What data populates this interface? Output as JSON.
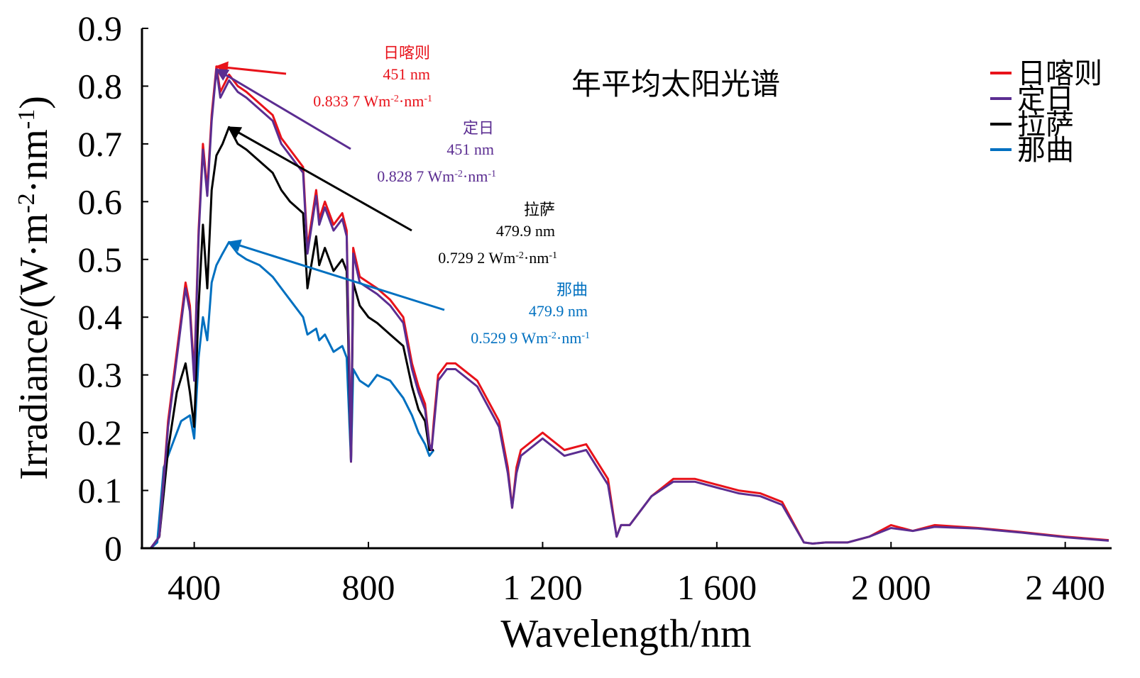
{
  "chart_data": {
    "type": "line",
    "title": "年平均太阳光谱",
    "xlabel": "Wavelength/nm",
    "ylabel_main": "Irradiance/(W·m",
    "ylabel_sup1": "-2",
    "ylabel_mid": "·nm",
    "ylabel_sup2": "-1",
    "ylabel_end": ")",
    "xlim": [
      280,
      2500
    ],
    "ylim": [
      0,
      0.9
    ],
    "xticks": [
      400,
      800,
      1200,
      1600,
      2000,
      2400
    ],
    "xtick_labels": [
      "400",
      "800",
      "1 200",
      "1 600",
      "2 000",
      "2 400"
    ],
    "yticks": [
      0,
      0.1,
      0.2,
      0.3,
      0.4,
      0.5,
      0.6,
      0.7,
      0.8,
      0.9
    ],
    "ytick_labels": [
      "0",
      "0.1",
      "0.2",
      "0.3",
      "0.4",
      "0.5",
      "0.6",
      "0.7",
      "0.8",
      "0.9"
    ],
    "legend_position": "top-right",
    "series": [
      {
        "name": "日喀则",
        "color": "#e8121a",
        "peak": {
          "wavelength": "451 nm",
          "value": "0.833 7",
          "unit_base": "Wm",
          "unit_sup1": "-2",
          "unit_mid": "·nm",
          "unit_sup2": "-1"
        },
        "x": [
          290,
          300,
          320,
          340,
          360,
          380,
          390,
          400,
          410,
          420,
          430,
          440,
          451,
          460,
          480,
          500,
          520,
          550,
          580,
          600,
          620,
          650,
          660,
          680,
          687,
          700,
          720,
          740,
          750,
          760,
          765,
          780,
          800,
          820,
          850,
          880,
          900,
          915,
          930,
          940,
          945,
          950,
          960,
          980,
          1000,
          1050,
          1100,
          1120,
          1130,
          1140,
          1150,
          1200,
          1250,
          1300,
          1350,
          1370,
          1380,
          1400,
          1450,
          1500,
          1550,
          1600,
          1650,
          1700,
          1750,
          1800,
          1820,
          1850,
          1900,
          1950,
          2000,
          2050,
          2100,
          2200,
          2300,
          2400,
          2500
        ],
        "y": [
          0,
          0,
          0.02,
          0.22,
          0.34,
          0.46,
          0.42,
          0.3,
          0.55,
          0.7,
          0.62,
          0.75,
          0.834,
          0.79,
          0.82,
          0.8,
          0.79,
          0.77,
          0.75,
          0.71,
          0.69,
          0.66,
          0.52,
          0.62,
          0.57,
          0.6,
          0.56,
          0.58,
          0.55,
          0.15,
          0.52,
          0.47,
          0.46,
          0.45,
          0.43,
          0.4,
          0.32,
          0.28,
          0.25,
          0.18,
          0.17,
          0.22,
          0.3,
          0.32,
          0.32,
          0.29,
          0.22,
          0.14,
          0.07,
          0.14,
          0.17,
          0.2,
          0.17,
          0.18,
          0.12,
          0.02,
          0.04,
          0.04,
          0.09,
          0.12,
          0.12,
          0.11,
          0.1,
          0.095,
          0.08,
          0.01,
          0.008,
          0.01,
          0.01,
          0.02,
          0.04,
          0.03,
          0.04,
          0.035,
          0.028,
          0.02,
          0.014
        ]
      },
      {
        "name": "定日",
        "color": "#5b2d91",
        "peak": {
          "wavelength": "451 nm",
          "value": "0.828 7",
          "unit_base": "Wm",
          "unit_sup1": "-2",
          "unit_mid": "·nm",
          "unit_sup2": "-1"
        },
        "x": [
          290,
          300,
          320,
          340,
          360,
          380,
          390,
          400,
          410,
          420,
          430,
          440,
          451,
          460,
          480,
          500,
          520,
          550,
          580,
          600,
          620,
          650,
          660,
          680,
          687,
          700,
          720,
          740,
          750,
          760,
          765,
          780,
          800,
          820,
          850,
          880,
          900,
          915,
          930,
          940,
          945,
          950,
          960,
          980,
          1000,
          1050,
          1100,
          1120,
          1130,
          1140,
          1150,
          1200,
          1250,
          1300,
          1350,
          1370,
          1380,
          1400,
          1450,
          1500,
          1550,
          1600,
          1650,
          1700,
          1750,
          1800,
          1820,
          1850,
          1900,
          1950,
          2000,
          2050,
          2100,
          2200,
          2300,
          2400,
          2500
        ],
        "y": [
          0,
          0,
          0.02,
          0.21,
          0.33,
          0.45,
          0.41,
          0.29,
          0.54,
          0.69,
          0.61,
          0.74,
          0.829,
          0.78,
          0.81,
          0.79,
          0.78,
          0.76,
          0.74,
          0.7,
          0.68,
          0.65,
          0.51,
          0.61,
          0.56,
          0.59,
          0.55,
          0.57,
          0.54,
          0.15,
          0.51,
          0.46,
          0.45,
          0.44,
          0.42,
          0.39,
          0.31,
          0.27,
          0.24,
          0.18,
          0.17,
          0.21,
          0.29,
          0.31,
          0.31,
          0.28,
          0.21,
          0.13,
          0.07,
          0.13,
          0.16,
          0.19,
          0.16,
          0.17,
          0.11,
          0.02,
          0.04,
          0.04,
          0.09,
          0.115,
          0.115,
          0.105,
          0.095,
          0.09,
          0.075,
          0.01,
          0.008,
          0.01,
          0.01,
          0.02,
          0.035,
          0.03,
          0.037,
          0.034,
          0.027,
          0.019,
          0.013
        ]
      },
      {
        "name": "拉萨",
        "color": "#000000",
        "peak": {
          "wavelength": "479.9 nm",
          "value": "0.729 2",
          "unit_base": "Wm",
          "unit_sup1": "-2",
          "unit_mid": "·nm",
          "unit_sup2": "-1"
        },
        "x": [
          290,
          300,
          320,
          340,
          360,
          380,
          390,
          400,
          410,
          420,
          430,
          440,
          451,
          465,
          479.9,
          500,
          520,
          550,
          580,
          600,
          620,
          650,
          660,
          680,
          687,
          700,
          720,
          740,
          750,
          760,
          765,
          780,
          800,
          820,
          850,
          880,
          900,
          915,
          930,
          940,
          950
        ],
        "y": [
          0,
          0,
          0.02,
          0.17,
          0.27,
          0.32,
          0.27,
          0.21,
          0.42,
          0.56,
          0.45,
          0.62,
          0.68,
          0.7,
          0.729,
          0.7,
          0.69,
          0.67,
          0.65,
          0.62,
          0.6,
          0.58,
          0.45,
          0.54,
          0.49,
          0.52,
          0.48,
          0.5,
          0.48,
          0.15,
          0.46,
          0.42,
          0.4,
          0.39,
          0.37,
          0.35,
          0.28,
          0.24,
          0.22,
          0.17,
          0.17
        ]
      },
      {
        "name": "那曲",
        "color": "#0070c0",
        "peak": {
          "wavelength": "479.9 nm",
          "value": "0.529 9",
          "unit_base": "Wm",
          "unit_sup1": "-2",
          "unit_mid": "·nm",
          "unit_sup2": "-1"
        },
        "x": [
          290,
          300,
          315,
          330,
          350,
          370,
          390,
          400,
          410,
          420,
          430,
          440,
          451,
          465,
          479.9,
          500,
          520,
          550,
          580,
          600,
          620,
          650,
          660,
          680,
          687,
          700,
          720,
          740,
          750,
          760,
          765,
          780,
          800,
          820,
          850,
          880,
          900,
          915,
          930,
          940,
          950
        ],
        "y": [
          0,
          0,
          0.01,
          0.14,
          0.18,
          0.22,
          0.23,
          0.19,
          0.33,
          0.4,
          0.36,
          0.46,
          0.49,
          0.51,
          0.53,
          0.51,
          0.5,
          0.49,
          0.47,
          0.45,
          0.43,
          0.4,
          0.37,
          0.38,
          0.36,
          0.37,
          0.34,
          0.35,
          0.33,
          0.15,
          0.31,
          0.29,
          0.28,
          0.3,
          0.29,
          0.26,
          0.23,
          0.2,
          0.18,
          0.16,
          0.17
        ]
      }
    ]
  }
}
